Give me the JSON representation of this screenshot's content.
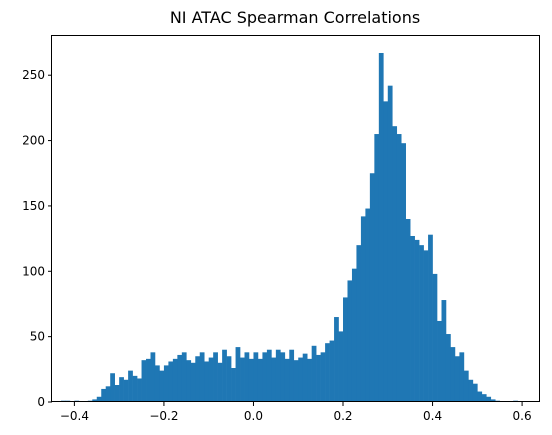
{
  "chart_data": {
    "type": "bar",
    "title": "NI ATAC Spearman Correlations",
    "xlabel": "",
    "ylabel": "",
    "xlim": [
      -0.45,
      0.64
    ],
    "ylim": [
      0,
      280
    ],
    "grid": false,
    "bar_color": "#1f77b4",
    "x_ticks": [
      -0.4,
      -0.2,
      0.0,
      0.2,
      0.4,
      0.6
    ],
    "x_tick_labels": [
      "−0.4",
      "−0.2",
      "0.0",
      "0.2",
      "0.4",
      "0.6"
    ],
    "y_ticks": [
      0,
      50,
      100,
      150,
      200,
      250
    ],
    "y_tick_labels": [
      "0",
      "50",
      "100",
      "150",
      "200",
      "250"
    ],
    "bin_start": -0.43,
    "bin_width": 0.01,
    "counts": [
      1,
      1,
      0,
      1,
      0,
      0,
      1,
      2,
      4,
      10,
      12,
      22,
      13,
      19,
      17,
      24,
      20,
      18,
      32,
      33,
      38,
      28,
      24,
      28,
      31,
      33,
      36,
      38,
      32,
      30,
      35,
      38,
      31,
      34,
      38,
      30,
      40,
      35,
      26,
      42,
      34,
      38,
      33,
      38,
      33,
      38,
      40,
      34,
      40,
      38,
      33,
      40,
      32,
      34,
      37,
      33,
      43,
      36,
      38,
      45,
      47,
      65,
      54,
      80,
      93,
      102,
      120,
      142,
      148,
      175,
      205,
      267,
      230,
      242,
      211,
      205,
      198,
      140,
      127,
      124,
      120,
      116,
      128,
      98,
      62,
      78,
      52,
      42,
      35,
      38,
      24,
      17,
      14,
      8,
      6,
      4,
      2,
      1,
      0,
      0,
      0,
      1
    ]
  }
}
